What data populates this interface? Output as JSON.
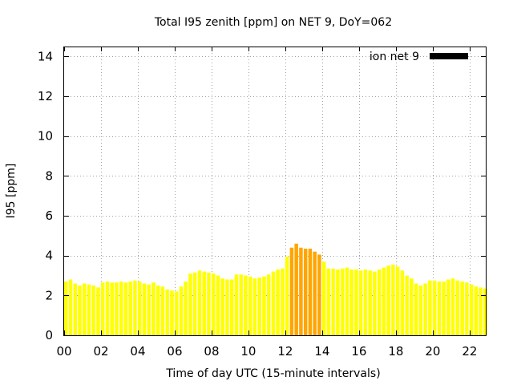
{
  "chart_data": {
    "type": "bar",
    "title": "Total I95 zenith [ppm] on NET 9, DoY=062",
    "xlabel": "Time of day UTC (15-minute intervals)",
    "ylabel": "I95 [ppm]",
    "xlim": [
      0,
      22.875
    ],
    "ylim": [
      0,
      14.5
    ],
    "x_ticks": [
      "00",
      "02",
      "04",
      "06",
      "08",
      "10",
      "12",
      "14",
      "16",
      "18",
      "20",
      "22"
    ],
    "y_ticks": [
      "0",
      "2",
      "4",
      "6",
      "8",
      "10",
      "12",
      "14"
    ],
    "grid": true,
    "legend": {
      "position": "top-right",
      "entries": [
        "ion net 9"
      ],
      "color": "#000000"
    },
    "interval_hours": 0.25,
    "colors": {
      "normal": "#ffff00",
      "elevated": "#ffa500"
    },
    "elevated_threshold": 4.0,
    "series": [
      {
        "name": "ion net 9",
        "values": [
          2.7,
          2.8,
          2.6,
          2.5,
          2.6,
          2.55,
          2.5,
          2.4,
          2.65,
          2.7,
          2.65,
          2.65,
          2.7,
          2.65,
          2.7,
          2.75,
          2.7,
          2.6,
          2.55,
          2.65,
          2.5,
          2.45,
          2.3,
          2.25,
          2.2,
          2.45,
          2.7,
          3.1,
          3.15,
          3.25,
          3.2,
          3.15,
          3.1,
          3.0,
          2.85,
          2.8,
          2.8,
          3.05,
          3.05,
          3.0,
          2.95,
          2.85,
          2.9,
          2.95,
          3.05,
          3.2,
          3.3,
          3.35,
          3.95,
          4.4,
          4.6,
          4.4,
          4.35,
          4.35,
          4.2,
          4.05,
          3.7,
          3.35,
          3.35,
          3.3,
          3.35,
          3.4,
          3.3,
          3.3,
          3.25,
          3.3,
          3.25,
          3.2,
          3.3,
          3.4,
          3.5,
          3.55,
          3.45,
          3.25,
          3.0,
          2.85,
          2.6,
          2.5,
          2.6,
          2.75,
          2.75,
          2.7,
          2.7,
          2.8,
          2.85,
          2.75,
          2.7,
          2.65,
          2.55,
          2.45,
          2.4,
          2.35
        ]
      }
    ]
  }
}
